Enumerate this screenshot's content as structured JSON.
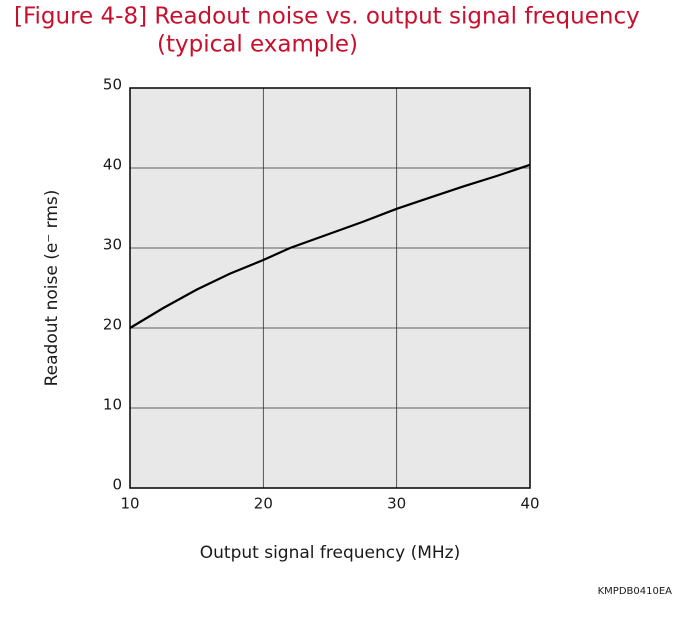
{
  "chart_data": {
    "type": "line",
    "title": "[Figure 4-8] Readout noise vs. output signal frequency",
    "subtitle": "(typical example)",
    "x_label": "Output signal frequency (MHz)",
    "y_label": "Readout noise (e⁻ rms)",
    "footnote": "KMPDB0410EA",
    "x": [
      10,
      12.5,
      15,
      17.5,
      20,
      22,
      25,
      27.5,
      30,
      32.5,
      35,
      37.5,
      40
    ],
    "series": [
      {
        "color": "#000000",
        "values": [
          20,
          22.5,
          24.8,
          26.8,
          28.5,
          30,
          31.8,
          33.3,
          34.9,
          36.3,
          37.7,
          39.0,
          40.4
        ]
      }
    ],
    "xlim": [
      10,
      40
    ],
    "xticks": [
      10,
      20,
      30,
      40
    ],
    "ylim": [
      0,
      50
    ],
    "yticks": [
      0,
      10,
      20,
      30,
      40,
      50
    ],
    "grid": true,
    "title_color": "#c8102e",
    "plot_background": "#e8e8e8"
  }
}
